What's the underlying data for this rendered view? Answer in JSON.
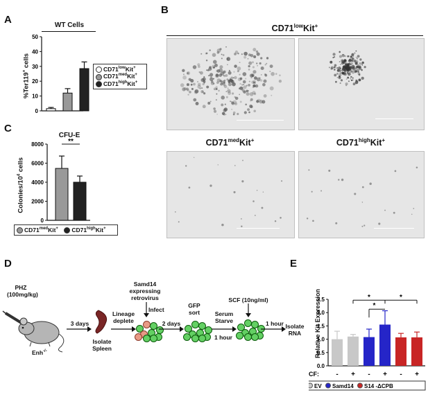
{
  "panels": {
    "A": "A",
    "B": "B",
    "C": "C",
    "D": "D",
    "E": "E"
  },
  "panelA": {
    "group_title": "WT Cells",
    "legend": [
      {
        "pre": "CD71",
        "sup": "low",
        "post": "Kit",
        "sup2": "+",
        "color": "#ffffff"
      },
      {
        "pre": "CD71",
        "sup": "med",
        "post": "Kit",
        "sup2": "+",
        "color": "#999999"
      },
      {
        "pre": "CD71",
        "sup": "high",
        "post": "Kit",
        "sup2": "+",
        "color": "#222222"
      }
    ]
  },
  "panelB": {
    "header_pre": "CD71",
    "header_sup": "low",
    "header_post": "Kit",
    "header_sup2": "+",
    "med_pre": "CD71",
    "med_sup": "med",
    "med_post": "Kit",
    "med_sup2": "+",
    "high_pre": "CD71",
    "high_sup": "high",
    "high_post": "Kit",
    "high_sup2": "+"
  },
  "panelC": {
    "title": "CFU-E",
    "sig": "**",
    "legend": [
      {
        "pre": "CD71",
        "sup": "med",
        "post": "Kit",
        "sup2": "+",
        "color": "#999999"
      },
      {
        "pre": "CD71",
        "sup": "high",
        "post": "Kit",
        "sup2": "+",
        "color": "#222222"
      }
    ]
  },
  "panelD": {
    "phz": "PHZ",
    "dose": "(100mg/kg)",
    "mouse_pre": "Enh",
    "mouse_sup": "-/-",
    "step1_top": "3 days",
    "step1_bottom1": "Isolate",
    "step1_bottom2": "Spleen",
    "step2_1": "Lineage",
    "step2_2": "deplete",
    "infect_1": "Samd14",
    "infect_2": "expressing",
    "infect_3": "retrovirus",
    "infect_4": "Infect",
    "step3": "2 days",
    "gfp_1": "GFP",
    "gfp_2": "sort",
    "serum_1": "Serum",
    "serum_2": "Starve",
    "hour1": "1 hour",
    "scf": "SCF (10ng/ml)",
    "hour2": "1 hour",
    "isolate_1": "Isolate",
    "isolate_2": "RNA"
  },
  "chart_data": [
    {
      "panel": "A",
      "type": "bar",
      "categories": [
        "CD71lowKit+",
        "CD71medKit+",
        "CD71highKit+"
      ],
      "values": [
        1.5,
        12,
        28.5
      ],
      "errors": [
        0.8,
        3,
        4.5
      ],
      "colors": [
        "#ffffff",
        "#999999",
        "#222222"
      ],
      "ylabel": "%Ter119+ cells",
      "ylim": [
        0,
        50
      ],
      "yticks": [
        0,
        10,
        20,
        30,
        40,
        50
      ],
      "title": "WT Cells"
    },
    {
      "panel": "C",
      "type": "bar",
      "categories": [
        "CD71medKit+",
        "CD71highKit+"
      ],
      "values": [
        5450,
        4000
      ],
      "errors": [
        1300,
        650
      ],
      "colors": [
        "#999999",
        "#222222"
      ],
      "ylabel": "Colonies/10⁴ cells",
      "ylim": [
        0,
        8000
      ],
      "yticks": [
        0,
        2000,
        4000,
        6000,
        8000
      ],
      "title": "CFU-E",
      "annotation": "**"
    },
    {
      "panel": "E",
      "type": "bar",
      "categories": [
        "EV -",
        "EV +",
        "Samd14 -",
        "Samd14 +",
        "S14-ΔCPB -",
        "S14-ΔCPB +"
      ],
      "values": [
        1.0,
        1.1,
        1.08,
        1.55,
        1.07,
        1.07
      ],
      "errors": [
        0.3,
        0.08,
        0.3,
        0.52,
        0.15,
        0.2
      ],
      "colors": [
        "#c8c8c8",
        "#c8c8c8",
        "#2525c8",
        "#2525c8",
        "#c82525",
        "#c82525"
      ],
      "ylabel": "Relative Kit Expression",
      "ylim": [
        0,
        2.5
      ],
      "yticks": [
        0.0,
        0.5,
        1.0,
        1.5,
        2.0,
        2.5
      ],
      "scf_label": "SCF:",
      "scf_values": [
        "-",
        "+",
        "-",
        "+",
        "-",
        "+"
      ],
      "legend": [
        {
          "name": "EV",
          "color": "#c8c8c8"
        },
        {
          "name": "Samd14",
          "color": "#2525c8"
        },
        {
          "name": "S14 -ΔCPB",
          "color": "#c82525"
        }
      ],
      "annotations": [
        "*",
        "*",
        "*"
      ]
    }
  ]
}
